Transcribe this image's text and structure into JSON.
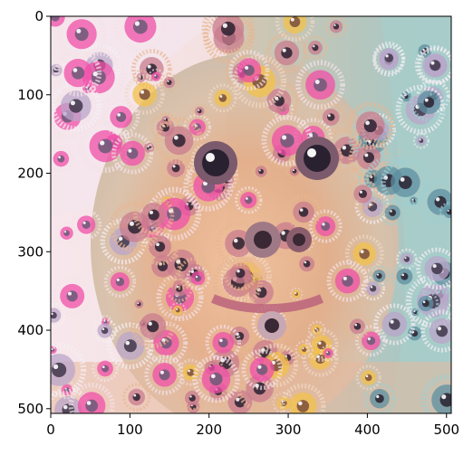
{
  "figure": {
    "kind": "image plot",
    "image_content": "psychedelic deep-dream style face portrait with many eye-like swirls",
    "image_extent": {
      "x": [
        0,
        506
      ],
      "y": [
        506,
        0
      ]
    },
    "x_axis": {
      "ticks": [
        0,
        100,
        200,
        300,
        400,
        500
      ],
      "tick_labels": [
        "0",
        "100",
        "200",
        "300",
        "400",
        "500"
      ]
    },
    "y_axis": {
      "inverted": true,
      "ticks": [
        0,
        100,
        200,
        300,
        400,
        500
      ],
      "tick_labels": [
        "0",
        "100",
        "200",
        "300",
        "400",
        "500"
      ]
    },
    "colors": {
      "frame": "#000000",
      "background": "#ffffff",
      "warm_center": "#e7b691",
      "cool_edge": "#9ecfd0",
      "pastel_left": "#f3e3e8",
      "pink_accent": "#f04fa8",
      "dark_eye": "#2a2130",
      "gold_accent": "#f2c24a"
    }
  }
}
